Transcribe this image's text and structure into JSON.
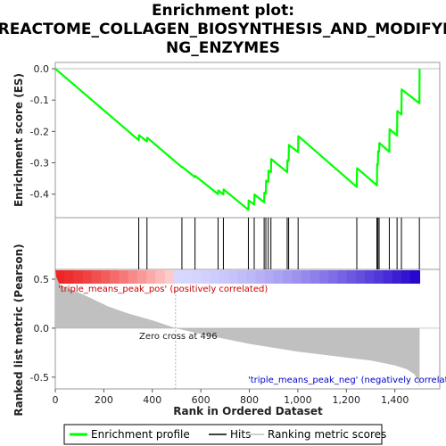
{
  "chart_data": {
    "type": "line",
    "title": "Enrichment plot: REACTOME_COLLAGEN_BIOSYNTHESIS_AND_MODIFYING_ENZYMES",
    "title_lines": [
      "Enrichment plot:",
      "REACTOME_COLLAGEN_BIOSYNTHESIS_AND_MODIFYI",
      "NG_ENZYMES"
    ],
    "es_panel": {
      "ylabel": "Enrichment score (ES)",
      "ylim": [
        -0.475,
        0.02
      ],
      "yticks": [
        "0.0",
        "-0.1",
        "-0.2",
        "-0.3",
        "-0.4"
      ],
      "ytick_values": [
        0.0,
        -0.1,
        -0.2,
        -0.3,
        -0.4
      ],
      "color": "#00ff00",
      "series": {
        "name": "Enrichment profile",
        "points": [
          [
            0,
            0.0
          ],
          [
            344,
            -0.228
          ],
          [
            345,
            -0.212
          ],
          [
            378,
            -0.232
          ],
          [
            379,
            -0.22
          ],
          [
            522,
            -0.314
          ],
          [
            523,
            -0.313
          ],
          [
            576,
            -0.346
          ],
          [
            577,
            -0.342
          ],
          [
            671,
            -0.4
          ],
          [
            672,
            -0.388
          ],
          [
            693,
            -0.401
          ],
          [
            694,
            -0.385
          ],
          [
            796,
            -0.45
          ],
          [
            797,
            -0.42
          ],
          [
            820,
            -0.433
          ],
          [
            821,
            -0.401
          ],
          [
            861,
            -0.426
          ],
          [
            862,
            -0.395
          ],
          [
            868,
            -0.398
          ],
          [
            869,
            -0.357
          ],
          [
            878,
            -0.361
          ],
          [
            879,
            -0.325
          ],
          [
            889,
            -0.33
          ],
          [
            890,
            -0.288
          ],
          [
            956,
            -0.33
          ],
          [
            957,
            -0.292
          ],
          [
            962,
            -0.294
          ],
          [
            963,
            -0.243
          ],
          [
            1001,
            -0.266
          ],
          [
            1002,
            -0.215
          ],
          [
            1243,
            -0.377
          ],
          [
            1244,
            -0.317
          ],
          [
            1326,
            -0.372
          ],
          [
            1327,
            -0.304
          ],
          [
            1330,
            -0.306
          ],
          [
            1331,
            -0.263
          ],
          [
            1335,
            -0.265
          ],
          [
            1336,
            -0.237
          ],
          [
            1377,
            -0.265
          ],
          [
            1378,
            -0.193
          ],
          [
            1409,
            -0.213
          ],
          [
            1410,
            -0.135
          ],
          [
            1427,
            -0.146
          ],
          [
            1428,
            -0.066
          ],
          [
            1501,
            -0.11
          ],
          [
            1502,
            0.0
          ]
        ]
      }
    },
    "hits": [
      344,
      378,
      522,
      576,
      671,
      693,
      796,
      820,
      861,
      868,
      878,
      889,
      956,
      962,
      1001,
      1243,
      1326,
      1330,
      1335,
      1377,
      1409,
      1427,
      1501
    ],
    "metric_panel": {
      "ylabel": "Ranked list metric (Pearson)",
      "ylim": [
        -0.62,
        0.6
      ],
      "yticks": [
        "0.5",
        "0.0",
        "-0.5"
      ],
      "ytick_values": [
        0.5,
        0.0,
        -0.5
      ],
      "fill_color": "#c0c0c0",
      "profile": [
        [
          0,
          0.6
        ],
        [
          4,
          0.52
        ],
        [
          15,
          0.46
        ],
        [
          35,
          0.42
        ],
        [
          70,
          0.39
        ],
        [
          110,
          0.35
        ],
        [
          160,
          0.29
        ],
        [
          220,
          0.22
        ],
        [
          300,
          0.15
        ],
        [
          400,
          0.08
        ],
        [
          496,
          0.0
        ],
        [
          600,
          -0.06
        ],
        [
          700,
          -0.11
        ],
        [
          800,
          -0.16
        ],
        [
          900,
          -0.2
        ],
        [
          1000,
          -0.24
        ],
        [
          1100,
          -0.27
        ],
        [
          1200,
          -0.3
        ],
        [
          1300,
          -0.33
        ],
        [
          1400,
          -0.38
        ],
        [
          1450,
          -0.42
        ],
        [
          1480,
          -0.47
        ],
        [
          1495,
          -0.53
        ],
        [
          1502,
          -0.6
        ]
      ],
      "zero_cross_label": "Zero cross at 496",
      "zero_cross": 496,
      "pos_label": "'triple_means_peak_pos' (positively correlated)",
      "neg_label": "'triple_means_peak_neg' (negatively correlated)"
    },
    "xlabel": "Rank in Ordered Dataset",
    "xlim": [
      0,
      1585
    ],
    "xticks": [
      "0",
      "200",
      "400",
      "600",
      "800",
      "1,000",
      "1,200",
      "1,400"
    ],
    "xtick_values": [
      0,
      200,
      400,
      600,
      800,
      1000,
      1200,
      1400
    ],
    "max_rank": 1502,
    "heat_colors": {
      "pos_strong": "#ee2222",
      "pos_light": "#ffd8d8",
      "neg_light": "#d8d8ff",
      "neg_strong": "#2200cc"
    },
    "legend": [
      {
        "label": "Enrichment profile",
        "color": "#00ff00"
      },
      {
        "label": "Hits",
        "color": "#000000"
      },
      {
        "label": "Ranking metric scores",
        "color": "#c0c0c0"
      }
    ]
  }
}
